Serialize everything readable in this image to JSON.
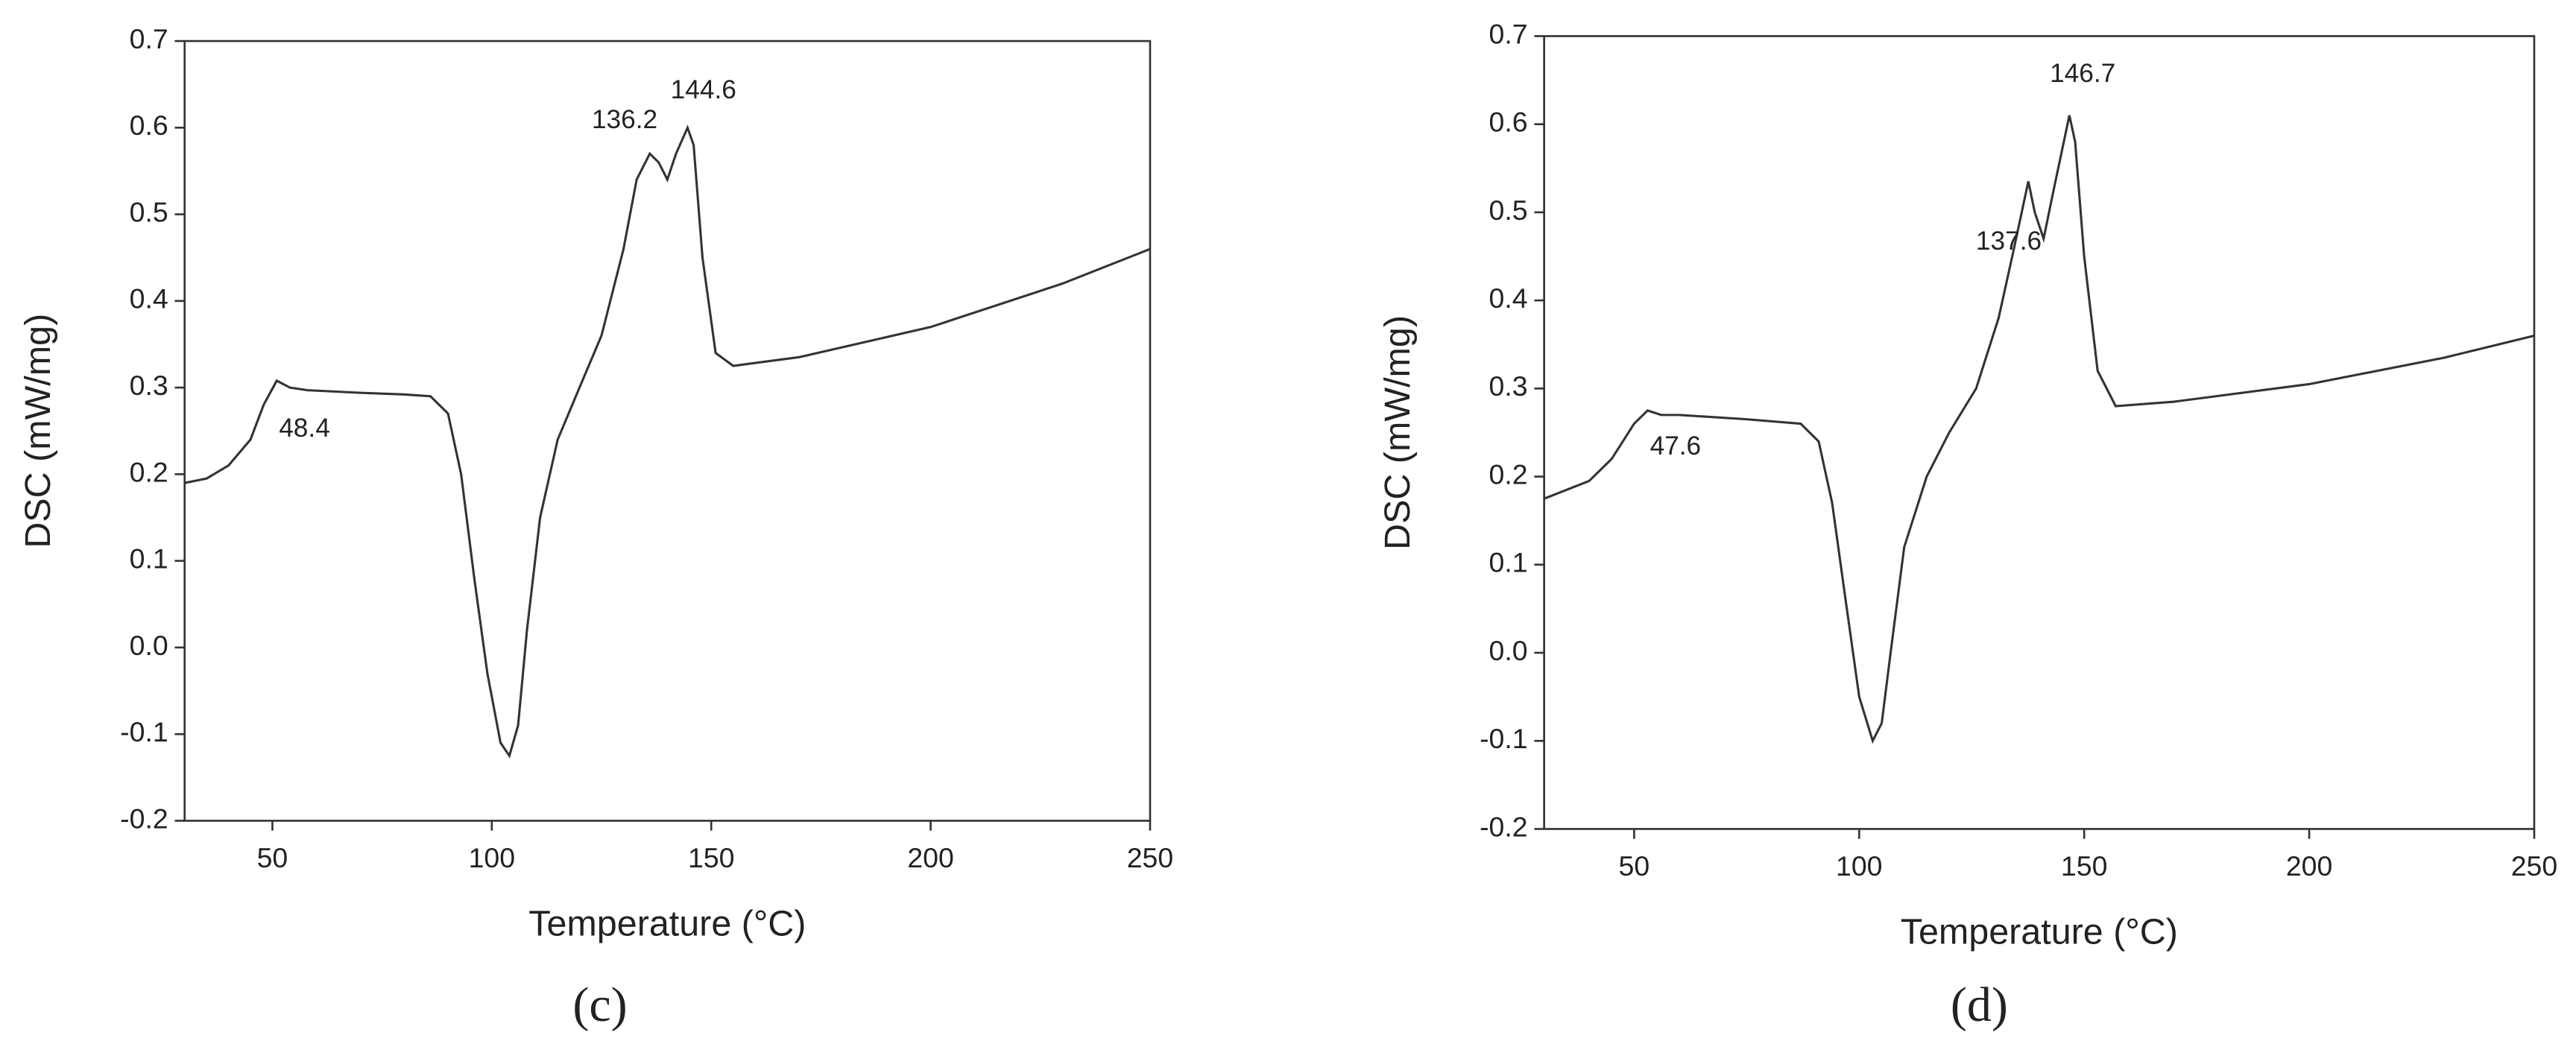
{
  "chart_data": [
    {
      "type": "line",
      "label": "(c)",
      "xlabel": "Temperature (°C)",
      "ylabel": "DSC (mW/mg)",
      "xlim": [
        30,
        250
      ],
      "ylim": [
        -0.2,
        0.7
      ],
      "xticks": [
        50,
        100,
        150,
        200,
        250
      ],
      "yticks": [
        -0.2,
        -0.1,
        {
          "value": 0,
          "label": "0.0"
        },
        0.1,
        0.2,
        0.3,
        0.4,
        0.5,
        0.6,
        0.7
      ],
      "annotations": [
        "48.4",
        "136.2",
        "144.6"
      ],
      "series": [
        {
          "color": "#333333",
          "x": [
            30,
            35,
            40,
            45,
            48,
            51,
            54,
            58,
            70,
            80,
            86,
            90,
            93,
            96,
            99,
            102,
            104,
            106,
            108,
            111,
            115,
            120,
            125,
            130,
            133,
            136,
            138,
            140,
            142,
            144.6,
            146,
            148,
            151,
            155,
            170,
            200,
            230,
            250
          ],
          "values": [
            0.19,
            0.195,
            0.21,
            0.24,
            0.28,
            0.308,
            0.3,
            0.297,
            0.294,
            0.292,
            0.29,
            0.27,
            0.2,
            0.08,
            -0.03,
            -0.11,
            -0.125,
            -0.09,
            0.02,
            0.15,
            0.24,
            0.3,
            0.36,
            0.46,
            0.54,
            0.57,
            0.56,
            0.54,
            0.57,
            0.6,
            0.58,
            0.45,
            0.34,
            0.325,
            0.335,
            0.37,
            0.42,
            0.46
          ]
        }
      ]
    },
    {
      "type": "line",
      "label": "(d)",
      "xlabel": "Temperature (°C)",
      "ylabel": "DSC (mW/mg)",
      "xlim": [
        30,
        250
      ],
      "ylim": [
        -0.2,
        0.7
      ],
      "xticks": [
        50,
        100,
        150,
        200,
        250
      ],
      "yticks": [
        -0.2,
        -0.1,
        {
          "value": 0,
          "label": "0.0"
        },
        0.1,
        0.2,
        0.3,
        0.4,
        0.5,
        0.6,
        0.7
      ],
      "annotations": [
        "47.6",
        "137.6",
        "146.7"
      ],
      "series": [
        {
          "color": "#333333",
          "x": [
            30,
            40,
            45,
            50,
            53,
            56,
            60,
            75,
            87,
            91,
            94,
            97,
            100,
            103,
            105,
            107,
            110,
            115,
            120,
            126,
            131,
            134,
            137.6,
            139,
            141,
            143,
            146.7,
            148,
            150,
            153,
            157,
            170,
            200,
            230,
            250
          ],
          "values": [
            0.175,
            0.195,
            0.22,
            0.26,
            0.275,
            0.27,
            0.27,
            0.265,
            0.26,
            0.24,
            0.17,
            0.06,
            -0.05,
            -0.1,
            -0.08,
            0.0,
            0.12,
            0.2,
            0.25,
            0.3,
            0.38,
            0.45,
            0.535,
            0.5,
            0.47,
            0.52,
            0.61,
            0.58,
            0.45,
            0.32,
            0.28,
            0.285,
            0.305,
            0.335,
            0.36
          ]
        }
      ]
    }
  ]
}
